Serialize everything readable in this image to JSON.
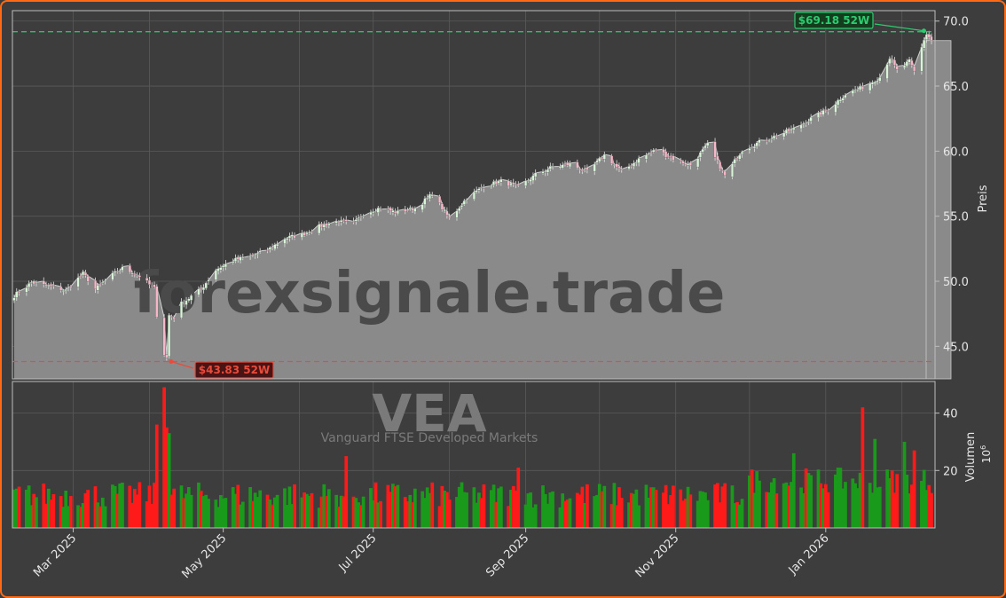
{
  "chart_data": {
    "type": "candlestick",
    "watermark": {
      "text": "forexsignale.trade",
      "ticker": "VEA",
      "fund_name": "Vanguard FTSE Developed Markets"
    },
    "price_axis": {
      "label": "Preis",
      "ylim": [
        42.5,
        70.8
      ],
      "ticks": [
        45.0,
        50.0,
        55.0,
        60.0,
        65.0,
        70.0
      ],
      "tick_labels": [
        "45.0",
        "50.0",
        "55.0",
        "60.0",
        "65.0",
        "70.0"
      ]
    },
    "volume_axis": {
      "label": "Volumen",
      "multiplier": "10",
      "exponent": "6",
      "ticks": [
        20,
        40
      ],
      "tick_labels": [
        "20",
        "40"
      ],
      "ylim": [
        0,
        51
      ]
    },
    "x_axis": {
      "start": "2025-02-05",
      "end": "2026-02-13",
      "ticks": [
        {
          "date": "2025-03-01",
          "label": "Mar 2025"
        },
        {
          "date": "2025-05-01",
          "label": "May 2025"
        },
        {
          "date": "2025-07-01",
          "label": "Jul 2025"
        },
        {
          "date": "2025-09-01",
          "label": "Sep 2025"
        },
        {
          "date": "2025-11-01",
          "label": "Nov 2025"
        },
        {
          "date": "2026-01-01",
          "label": "Jan 2026"
        }
      ],
      "minor_grid_dates": [
        "2025-04-01",
        "2025-06-01",
        "2025-08-01",
        "2025-10-01",
        "2025-12-01",
        "2026-02-01"
      ]
    },
    "reference_lines": [
      {
        "label": "$69.18 52W",
        "value": 69.18,
        "color": "#2ecc71",
        "date": "2026-02-11"
      },
      {
        "label": "$43.83 52W",
        "value": 43.83,
        "color": "#e74c3c",
        "date": "2025-04-08"
      }
    ],
    "close_anchors": [
      [
        "2025-02-05",
        48.9
      ],
      [
        "2025-02-12",
        49.9
      ],
      [
        "2025-02-19",
        49.6
      ],
      [
        "2025-02-26",
        49.3
      ],
      [
        "2025-03-05",
        50.6
      ],
      [
        "2025-03-10",
        49.4
      ],
      [
        "2025-03-17",
        50.5
      ],
      [
        "2025-03-21",
        51.0
      ],
      [
        "2025-03-28",
        50.4
      ],
      [
        "2025-04-03",
        49.4
      ],
      [
        "2025-04-04",
        47.4
      ],
      [
        "2025-04-07",
        44.4
      ],
      [
        "2025-04-08",
        44.1
      ],
      [
        "2025-04-09",
        47.4
      ],
      [
        "2025-04-11",
        47.2
      ],
      [
        "2025-04-14",
        48.3
      ],
      [
        "2025-04-22",
        49.4
      ],
      [
        "2025-04-28",
        50.9
      ],
      [
        "2025-05-05",
        51.6
      ],
      [
        "2025-05-12",
        51.9
      ],
      [
        "2025-05-19",
        52.4
      ],
      [
        "2025-05-26",
        53.3
      ],
      [
        "2025-06-02",
        53.6
      ],
      [
        "2025-06-09",
        54.2
      ],
      [
        "2025-06-16",
        54.6
      ],
      [
        "2025-06-23",
        54.4
      ],
      [
        "2025-06-27",
        55.2
      ],
      [
        "2025-07-03",
        55.6
      ],
      [
        "2025-07-11",
        55.3
      ],
      [
        "2025-07-18",
        55.6
      ],
      [
        "2025-07-25",
        56.7
      ],
      [
        "2025-08-01",
        54.8
      ],
      [
        "2025-08-08",
        56.4
      ],
      [
        "2025-08-15",
        57.3
      ],
      [
        "2025-08-22",
        57.7
      ],
      [
        "2025-08-29",
        57.2
      ],
      [
        "2025-09-05",
        58.2
      ],
      [
        "2025-09-12",
        58.8
      ],
      [
        "2025-09-19",
        59.0
      ],
      [
        "2025-09-26",
        58.4
      ],
      [
        "2025-10-03",
        59.7
      ],
      [
        "2025-10-10",
        58.4
      ],
      [
        "2025-10-17",
        59.4
      ],
      [
        "2025-10-24",
        60.1
      ],
      [
        "2025-10-31",
        59.4
      ],
      [
        "2025-11-07",
        58.9
      ],
      [
        "2025-11-14",
        60.5
      ],
      [
        "2025-11-21",
        58.1
      ],
      [
        "2025-11-28",
        60.1
      ],
      [
        "2025-12-05",
        60.7
      ],
      [
        "2025-12-12",
        61.2
      ],
      [
        "2025-12-19",
        61.7
      ],
      [
        "2025-12-26",
        62.5
      ],
      [
        "2026-01-02",
        63.2
      ],
      [
        "2026-01-09",
        64.4
      ],
      [
        "2026-01-16",
        64.9
      ],
      [
        "2026-01-23",
        65.7
      ],
      [
        "2026-01-27",
        67.2
      ],
      [
        "2026-01-30",
        66.2
      ],
      [
        "2026-02-04",
        66.9
      ],
      [
        "2026-02-06",
        66.1
      ],
      [
        "2026-02-10",
        68.6
      ],
      [
        "2026-02-11",
        69.0
      ],
      [
        "2026-02-13",
        68.5
      ]
    ],
    "volume_peaks": [
      [
        "2025-04-07",
        49
      ],
      [
        "2025-04-04",
        36
      ],
      [
        "2025-04-08",
        35
      ],
      [
        "2025-04-09",
        33
      ],
      [
        "2025-06-20",
        25
      ],
      [
        "2025-08-29",
        21
      ],
      [
        "2025-12-19",
        26
      ],
      [
        "2026-01-16",
        42
      ],
      [
        "2026-01-21",
        31
      ],
      [
        "2026-02-02",
        30
      ],
      [
        "2026-02-06",
        27
      ]
    ],
    "volume_baseline": [
      7,
      16
    ],
    "colors": {
      "up": "#1a9a1a",
      "down": "#ff1a1a",
      "area": "#8a8a8a",
      "wick": "#e0e0e0",
      "grid": "#5a5a5a",
      "axis_text": "#e6e6e6"
    }
  }
}
